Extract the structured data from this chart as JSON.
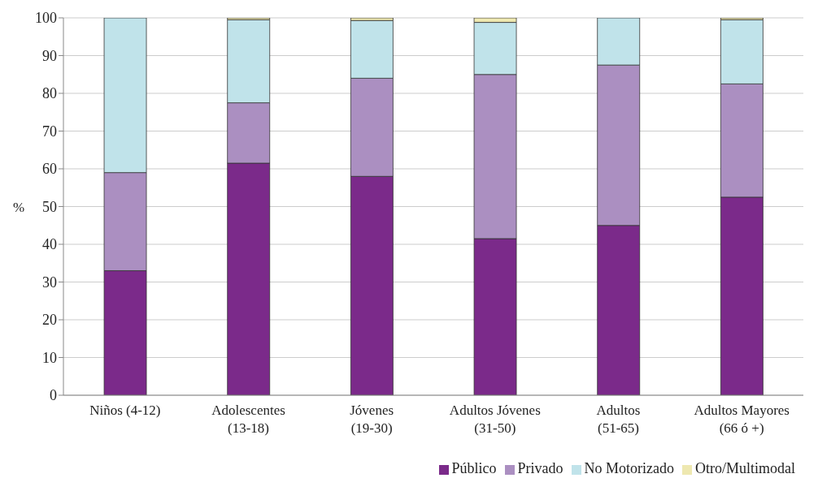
{
  "chart_data": {
    "type": "bar",
    "stacked": true,
    "ylabel": "%",
    "categories": [
      "Niños (4-12)",
      "Adolescentes (13-18)",
      "Jóvenes (19-30)",
      "Adultos Jóvenes (31-50)",
      "Adultos (51-65)",
      "Adultos Mayores (66 ó +)"
    ],
    "series": [
      {
        "name": "Público",
        "color": "#7b2a8a",
        "values": [
          33,
          61.5,
          58,
          41.5,
          45,
          52.5
        ]
      },
      {
        "name": "Privado",
        "color": "#ab8fc1",
        "values": [
          26,
          16,
          26,
          43.5,
          42.5,
          30
        ]
      },
      {
        "name": "No Motorizado",
        "color": "#c0e3ea",
        "values": [
          41,
          22,
          15.3,
          13.8,
          12.5,
          17
        ]
      },
      {
        "name": "Otro/Multimodal",
        "color": "#eee8b0",
        "values": [
          0,
          0.5,
          0.7,
          1.2,
          0,
          0.5
        ]
      }
    ],
    "ylim": [
      0,
      100
    ],
    "yticks": [
      0,
      10,
      20,
      30,
      40,
      50,
      60,
      70,
      80,
      90,
      100
    ],
    "grid": "y",
    "legend": "bottom right"
  }
}
